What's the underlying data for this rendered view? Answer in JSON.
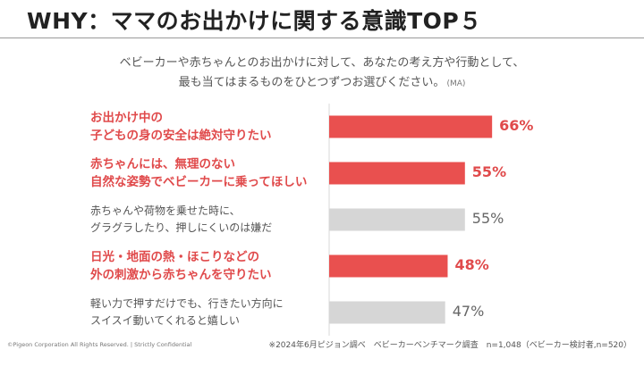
{
  "title": "WHY：ママのお出かけに関する意識TOP５",
  "question": {
    "line1": "ベビーカーや赤ちゃんとのお出かけに対して、あなたの考え方や行動として、",
    "line2": "最も当てはまるものをひとつずつお選びください。",
    "note": "(MA)"
  },
  "colors": {
    "highlight": "#e9504f",
    "gray": "#d6d6d6",
    "axis": "#d9d9d9"
  },
  "chart_data": {
    "type": "bar",
    "orientation": "horizontal",
    "title": "WHY：ママのお出かけに関する意識TOP５",
    "xlim": [
      0,
      100
    ],
    "categories": [
      [
        "お出かけ中の",
        "子どもの身の安全は絶対守りたい"
      ],
      [
        "赤ちゃんには、無理のない",
        "自然な姿勢でベビーカーに乗ってほしい"
      ],
      [
        "赤ちゃんや荷物を乗せた時に、",
        "グラグラしたり、押しにくいのは嫌だ"
      ],
      [
        "日光・地面の熱・ほこりなどの",
        "外の刺激から赤ちゃんを守りたい"
      ],
      [
        "軽い力で押すだけでも、行きたい方向に",
        "スイスイ動いてくれると嬉しい"
      ]
    ],
    "values": [
      66,
      55,
      55,
      48,
      47
    ],
    "value_labels": [
      "66%",
      "55%",
      "55%",
      "48%",
      "47%"
    ],
    "highlighted": [
      true,
      true,
      false,
      true,
      false
    ]
  },
  "footer": {
    "left": "©Pigeon Corporation All Rights Reserved.  |  Strictly Confidential",
    "right": "※2024年6月ピジョン調べ　ベビーカーベンチマーク調査　n=1,048（ベビーカー検討者,n=520）"
  }
}
